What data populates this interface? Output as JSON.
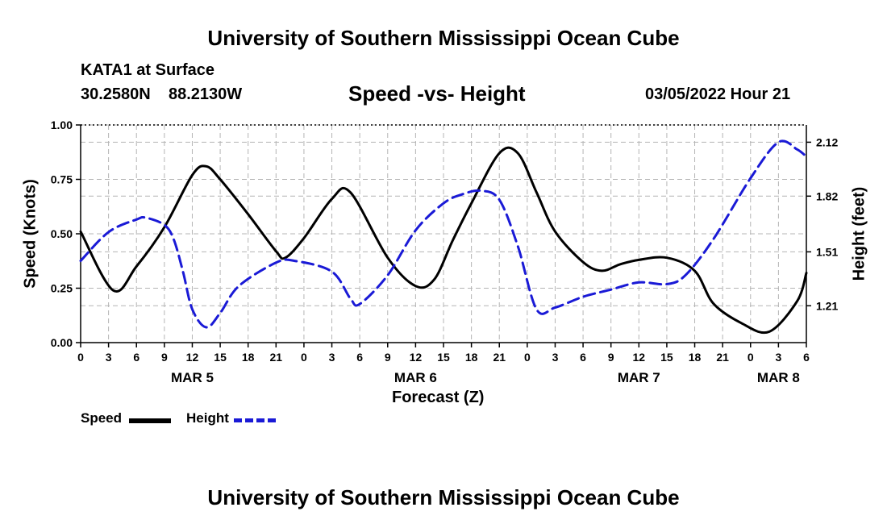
{
  "header": {
    "title_top": "University of Southern Mississippi Ocean Cube",
    "station": "KATA1 at Surface",
    "lat": "30.2580N",
    "lon": "88.2130W",
    "datetime": "03/05/2022 Hour 21"
  },
  "footer": {
    "title_bottom": "University of Southern Mississippi Ocean Cube"
  },
  "legend": {
    "speed_label": "Speed",
    "height_label": "Height"
  },
  "colors": {
    "speed": "#000000",
    "height": "#1a1ad6",
    "grid": "#b4b4b4"
  },
  "chart_data": {
    "type": "line",
    "title": "Speed -vs- Height",
    "xlabel": "Forecast (Z)",
    "ylabel": "Speed (Knots)",
    "y2label": "Height (feet)",
    "x_hours_range": [
      0,
      78
    ],
    "ylim": [
      0,
      1.0
    ],
    "y2lim": [
      1.005,
      2.216
    ],
    "y_ticks": [
      "1.00",
      "0.75",
      "0.50",
      "0.25",
      "0.00"
    ],
    "y_tick_values": [
      1.0,
      0.75,
      0.5,
      0.25,
      0.0
    ],
    "y2_ticks": [
      "2.12",
      "1.82",
      "1.51",
      "1.21"
    ],
    "y2_tick_values": [
      2.12,
      1.82,
      1.51,
      1.21
    ],
    "x_tick_labels": [
      "0",
      "3",
      "6",
      "9",
      "12",
      "15",
      "18",
      "21",
      "0",
      "3",
      "6",
      "9",
      "12",
      "15",
      "18",
      "21",
      "0",
      "3",
      "6",
      "9",
      "12",
      "15",
      "18",
      "21",
      "0",
      "3",
      "6"
    ],
    "day_labels": [
      {
        "label": "MAR 5",
        "hour": 12
      },
      {
        "label": "MAR 6",
        "hour": 36
      },
      {
        "label": "MAR 7",
        "hour": 60
      },
      {
        "label": "MAR 8",
        "hour": 75
      }
    ],
    "series": [
      {
        "name": "Speed",
        "axis": "left",
        "x": [
          0,
          3.5,
          6,
          9,
          12,
          13.5,
          15,
          18,
          21,
          22,
          24,
          27,
          29,
          33,
          36,
          38,
          40,
          42,
          45,
          47,
          49,
          51,
          54,
          56,
          58,
          60,
          63,
          66,
          68,
          71,
          74,
          77,
          78
        ],
        "values": [
          0.51,
          0.24,
          0.35,
          0.53,
          0.77,
          0.81,
          0.75,
          0.59,
          0.42,
          0.39,
          0.48,
          0.66,
          0.69,
          0.39,
          0.26,
          0.29,
          0.47,
          0.64,
          0.87,
          0.87,
          0.69,
          0.51,
          0.37,
          0.33,
          0.36,
          0.38,
          0.39,
          0.33,
          0.18,
          0.09,
          0.05,
          0.19,
          0.32
        ]
      },
      {
        "name": "Height",
        "axis": "right",
        "x": [
          0,
          3,
          6,
          7,
          9,
          10,
          11,
          12,
          13.5,
          15,
          17,
          21,
          23,
          27,
          29,
          30,
          33,
          36,
          39,
          41,
          43,
          45,
          47,
          49,
          51,
          54,
          57,
          60,
          63,
          65,
          68,
          72,
          75,
          77,
          78
        ],
        "values": [
          1.46,
          1.62,
          1.69,
          1.7,
          1.66,
          1.58,
          1.4,
          1.19,
          1.09,
          1.17,
          1.32,
          1.45,
          1.46,
          1.4,
          1.25,
          1.22,
          1.38,
          1.63,
          1.78,
          1.83,
          1.85,
          1.8,
          1.54,
          1.19,
          1.2,
          1.26,
          1.3,
          1.34,
          1.33,
          1.38,
          1.58,
          1.92,
          2.12,
          2.08,
          2.04
        ]
      }
    ]
  }
}
